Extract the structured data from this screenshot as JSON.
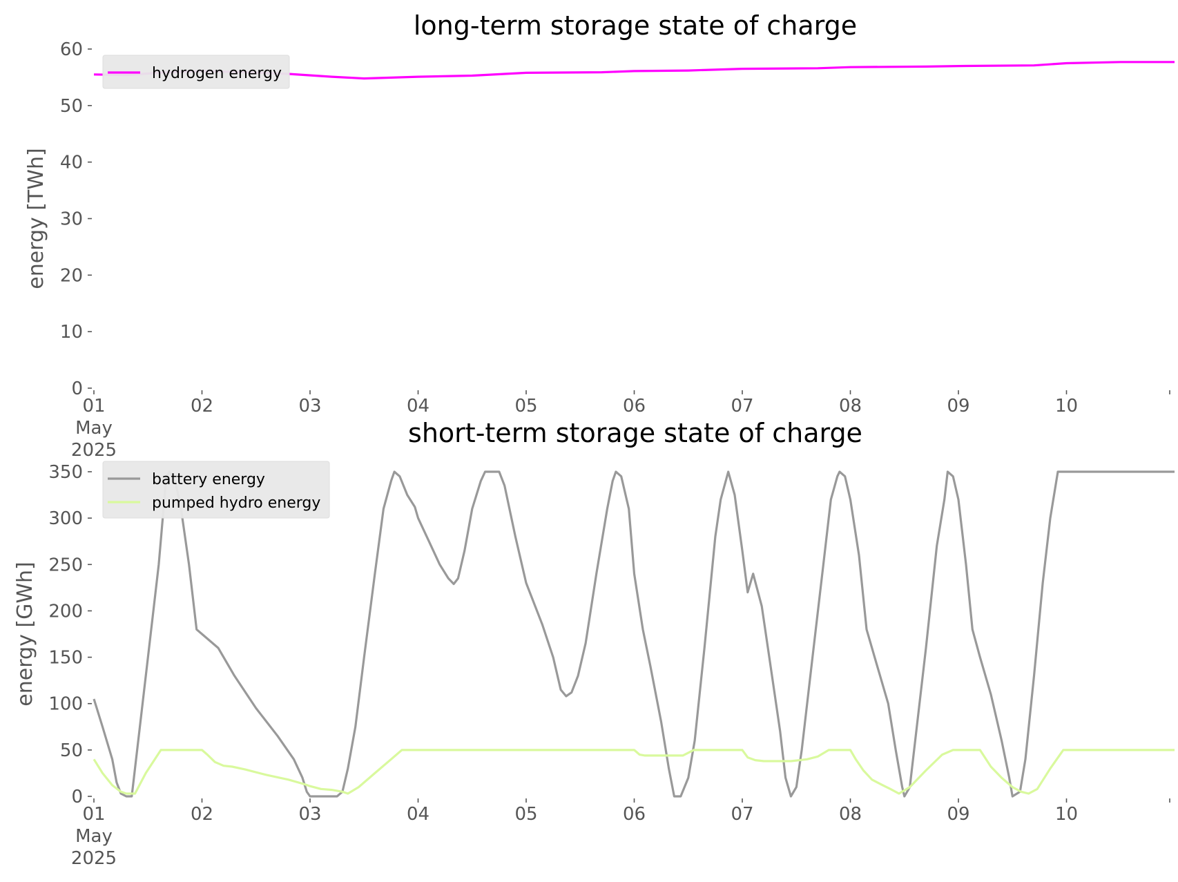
{
  "chart_data": [
    {
      "type": "line",
      "title": "long-term storage state of charge",
      "xlabel": "",
      "ylabel": "energy [TWh]",
      "ylim": [
        0,
        60
      ],
      "yticks": [
        0,
        10,
        20,
        30,
        40,
        50,
        60
      ],
      "ytick_labels": [
        "0",
        "10",
        "20",
        "30",
        "40",
        "50",
        "60"
      ],
      "xlim": [
        0,
        10
      ],
      "xtick_labels": [
        {
          "day": 0,
          "label": "01",
          "sub": [
            "May",
            "2025"
          ]
        },
        {
          "day": 1,
          "label": "02"
        },
        {
          "day": 2,
          "label": "03"
        },
        {
          "day": 3,
          "label": "04"
        },
        {
          "day": 4,
          "label": "05"
        },
        {
          "day": 5,
          "label": "06"
        },
        {
          "day": 6,
          "label": "07"
        },
        {
          "day": 7,
          "label": "08"
        },
        {
          "day": 8,
          "label": "09"
        },
        {
          "day": 9,
          "label": "10"
        }
      ],
      "x_unit": "days since 01 May 2025",
      "grid": false,
      "legend_position": "top-left",
      "series": [
        {
          "name": "hydrogen energy",
          "color": "#ff00ff",
          "points": [
            [
              0,
              55.5
            ],
            [
              0.3,
              55.4
            ],
            [
              0.6,
              55.8
            ],
            [
              1.0,
              56.1
            ],
            [
              1.4,
              55.9
            ],
            [
              1.8,
              55.6
            ],
            [
              2.2,
              55.1
            ],
            [
              2.5,
              54.8
            ],
            [
              3.0,
              55.1
            ],
            [
              3.5,
              55.3
            ],
            [
              4.0,
              55.8
            ],
            [
              4.7,
              55.9
            ],
            [
              5.0,
              56.1
            ],
            [
              5.5,
              56.2
            ],
            [
              6.0,
              56.5
            ],
            [
              6.7,
              56.6
            ],
            [
              7.0,
              56.8
            ],
            [
              7.7,
              56.9
            ],
            [
              8.0,
              57.0
            ],
            [
              8.7,
              57.1
            ],
            [
              9.0,
              57.5
            ],
            [
              9.5,
              57.7
            ],
            [
              10.0,
              57.7
            ]
          ]
        }
      ]
    },
    {
      "type": "line",
      "title": "short-term storage state of charge",
      "xlabel": "",
      "ylabel": "energy [GWh]",
      "ylim": [
        0,
        350
      ],
      "yticks": [
        0,
        50,
        100,
        150,
        200,
        250,
        300,
        350
      ],
      "ytick_labels": [
        "0",
        "50",
        "100",
        "150",
        "200",
        "250",
        "300",
        "350"
      ],
      "xlim": [
        0,
        10
      ],
      "xtick_labels": [
        {
          "day": 0,
          "label": "01",
          "sub": [
            "May",
            "2025"
          ]
        },
        {
          "day": 1,
          "label": "02"
        },
        {
          "day": 2,
          "label": "03"
        },
        {
          "day": 3,
          "label": "04"
        },
        {
          "day": 4,
          "label": "05"
        },
        {
          "day": 5,
          "label": "06"
        },
        {
          "day": 6,
          "label": "07"
        },
        {
          "day": 7,
          "label": "08"
        },
        {
          "day": 8,
          "label": "09"
        },
        {
          "day": 9,
          "label": "10"
        }
      ],
      "x_unit": "days since 01 May 2025",
      "grid": false,
      "legend_position": "top-left",
      "series": [
        {
          "name": "battery energy",
          "color": "#999999",
          "points": [
            [
              0,
              105
            ],
            [
              0.08,
              75
            ],
            [
              0.17,
              40
            ],
            [
              0.21,
              15
            ],
            [
              0.25,
              3
            ],
            [
              0.3,
              0
            ],
            [
              0.35,
              0
            ],
            [
              0.38,
              30
            ],
            [
              0.5,
              150
            ],
            [
              0.6,
              250
            ],
            [
              0.67,
              345
            ],
            [
              0.7,
              350
            ],
            [
              0.75,
              340
            ],
            [
              0.8,
              315
            ],
            [
              0.88,
              250
            ],
            [
              0.95,
              180
            ],
            [
              1.0,
              175
            ],
            [
              1.15,
              160
            ],
            [
              1.3,
              130
            ],
            [
              1.5,
              95
            ],
            [
              1.7,
              65
            ],
            [
              1.85,
              40
            ],
            [
              1.93,
              20
            ],
            [
              1.97,
              5
            ],
            [
              2.0,
              0
            ],
            [
              2.25,
              0
            ],
            [
              2.3,
              5
            ],
            [
              2.35,
              30
            ],
            [
              2.42,
              75
            ],
            [
              2.5,
              150
            ],
            [
              2.6,
              240
            ],
            [
              2.68,
              310
            ],
            [
              2.75,
              340
            ],
            [
              2.78,
              350
            ],
            [
              2.83,
              345
            ],
            [
              2.9,
              325
            ],
            [
              2.97,
              312
            ],
            [
              3.0,
              300
            ],
            [
              3.1,
              275
            ],
            [
              3.2,
              250
            ],
            [
              3.28,
              235
            ],
            [
              3.33,
              229
            ],
            [
              3.37,
              235
            ],
            [
              3.43,
              265
            ],
            [
              3.5,
              310
            ],
            [
              3.58,
              340
            ],
            [
              3.62,
              350
            ],
            [
              3.75,
              350
            ],
            [
              3.8,
              335
            ],
            [
              3.9,
              280
            ],
            [
              4.0,
              230
            ],
            [
              4.15,
              185
            ],
            [
              4.25,
              150
            ],
            [
              4.32,
              115
            ],
            [
              4.37,
              108
            ],
            [
              4.42,
              112
            ],
            [
              4.48,
              130
            ],
            [
              4.55,
              165
            ],
            [
              4.65,
              240
            ],
            [
              4.75,
              310
            ],
            [
              4.8,
              340
            ],
            [
              4.83,
              350
            ],
            [
              4.88,
              345
            ],
            [
              4.95,
              310
            ],
            [
              5.0,
              240
            ],
            [
              5.08,
              180
            ],
            [
              5.15,
              140
            ],
            [
              5.25,
              80
            ],
            [
              5.32,
              30
            ],
            [
              5.37,
              0
            ],
            [
              5.43,
              0
            ],
            [
              5.5,
              20
            ],
            [
              5.56,
              60
            ],
            [
              5.65,
              160
            ],
            [
              5.75,
              280
            ],
            [
              5.8,
              320
            ],
            [
              5.87,
              350
            ],
            [
              5.93,
              325
            ],
            [
              6.0,
              265
            ],
            [
              6.05,
              220
            ],
            [
              6.1,
              240
            ],
            [
              6.18,
              205
            ],
            [
              6.25,
              150
            ],
            [
              6.35,
              70
            ],
            [
              6.4,
              20
            ],
            [
              6.45,
              0
            ],
            [
              6.5,
              10
            ],
            [
              6.55,
              50
            ],
            [
              6.65,
              150
            ],
            [
              6.75,
              250
            ],
            [
              6.82,
              320
            ],
            [
              6.88,
              345
            ],
            [
              6.9,
              350
            ],
            [
              6.95,
              345
            ],
            [
              7.0,
              320
            ],
            [
              7.08,
              260
            ],
            [
              7.15,
              180
            ],
            [
              7.25,
              140
            ],
            [
              7.35,
              100
            ],
            [
              7.42,
              50
            ],
            [
              7.48,
              10
            ],
            [
              7.5,
              0
            ],
            [
              7.55,
              10
            ],
            [
              7.6,
              60
            ],
            [
              7.7,
              160
            ],
            [
              7.8,
              270
            ],
            [
              7.87,
              320
            ],
            [
              7.9,
              350
            ],
            [
              7.95,
              345
            ],
            [
              8.0,
              320
            ],
            [
              8.07,
              250
            ],
            [
              8.13,
              180
            ],
            [
              8.2,
              150
            ],
            [
              8.3,
              110
            ],
            [
              8.4,
              60
            ],
            [
              8.47,
              20
            ],
            [
              8.5,
              0
            ],
            [
              8.57,
              5
            ],
            [
              8.62,
              40
            ],
            [
              8.7,
              130
            ],
            [
              8.78,
              230
            ],
            [
              8.85,
              300
            ],
            [
              8.92,
              350
            ],
            [
              10.0,
              350
            ]
          ]
        },
        {
          "name": "pumped hydro energy",
          "color": "#d9f99d",
          "points": [
            [
              0,
              40
            ],
            [
              0.08,
              25
            ],
            [
              0.17,
              12
            ],
            [
              0.25,
              5
            ],
            [
              0.3,
              3
            ],
            [
              0.38,
              3
            ],
            [
              0.48,
              25
            ],
            [
              0.62,
              50
            ],
            [
              1.0,
              50
            ],
            [
              1.05,
              45
            ],
            [
              1.12,
              37
            ],
            [
              1.2,
              33
            ],
            [
              1.28,
              32
            ],
            [
              1.4,
              29
            ],
            [
              1.6,
              23
            ],
            [
              1.8,
              18
            ],
            [
              1.95,
              13
            ],
            [
              2.0,
              11
            ],
            [
              2.1,
              8
            ],
            [
              2.2,
              7
            ],
            [
              2.3,
              5
            ],
            [
              2.35,
              3
            ],
            [
              2.45,
              10
            ],
            [
              2.6,
              25
            ],
            [
              2.75,
              40
            ],
            [
              2.85,
              50
            ],
            [
              5.0,
              50
            ],
            [
              5.05,
              45
            ],
            [
              5.1,
              44
            ],
            [
              5.45,
              44
            ],
            [
              5.55,
              50
            ],
            [
              6.0,
              50
            ],
            [
              6.05,
              42
            ],
            [
              6.12,
              39
            ],
            [
              6.2,
              38
            ],
            [
              6.45,
              38
            ],
            [
              6.6,
              40
            ],
            [
              6.7,
              43
            ],
            [
              6.8,
              50
            ],
            [
              7.0,
              50
            ],
            [
              7.05,
              40
            ],
            [
              7.12,
              28
            ],
            [
              7.2,
              18
            ],
            [
              7.3,
              12
            ],
            [
              7.37,
              8
            ],
            [
              7.45,
              3
            ],
            [
              7.55,
              10
            ],
            [
              7.7,
              28
            ],
            [
              7.85,
              45
            ],
            [
              7.95,
              50
            ],
            [
              8.2,
              50
            ],
            [
              8.3,
              32
            ],
            [
              8.4,
              20
            ],
            [
              8.5,
              10
            ],
            [
              8.58,
              5
            ],
            [
              8.65,
              3
            ],
            [
              8.73,
              8
            ],
            [
              8.85,
              30
            ],
            [
              8.97,
              50
            ],
            [
              10.0,
              50
            ]
          ]
        }
      ]
    }
  ]
}
